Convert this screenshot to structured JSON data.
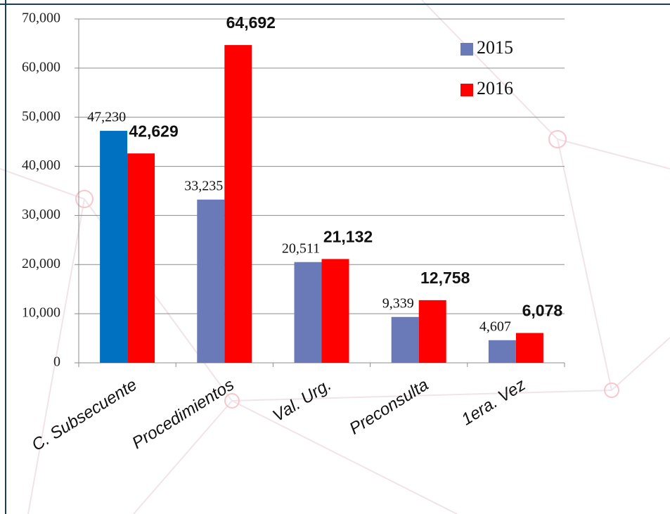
{
  "chart_data": {
    "type": "bar",
    "categories": [
      "C. Subsecuente",
      "Procedimientos",
      "Val. Urg.",
      "Preconsulta",
      "1era. Vez"
    ],
    "series": [
      {
        "name": "2015",
        "color": "#6a7ab8",
        "colors": [
          "#0070c0",
          "#6a7ab8",
          "#6a7ab8",
          "#6a7ab8",
          "#6a7ab8"
        ],
        "values": [
          47230,
          33235,
          20511,
          9339,
          4607
        ],
        "value_labels": [
          "47,230",
          "33,235",
          "20,511",
          "9,339",
          "4,607"
        ]
      },
      {
        "name": "2016",
        "color": "#ff0000",
        "values": [
          42629,
          64692,
          21132,
          12758,
          6078
        ],
        "value_labels": [
          "42,629",
          "64,692",
          "21,132",
          "12,758",
          "6,078"
        ]
      }
    ],
    "ylim": [
      0,
      70000
    ],
    "yticks": [
      {
        "value": 0,
        "label": "0"
      },
      {
        "value": 10000,
        "label": "10,000"
      },
      {
        "value": 20000,
        "label": "20,000"
      },
      {
        "value": 30000,
        "label": "30,000"
      },
      {
        "value": 40000,
        "label": "40,000"
      },
      {
        "value": 50000,
        "label": "50,000"
      },
      {
        "value": 60000,
        "label": "60,000"
      },
      {
        "value": 70000,
        "label": "70,000"
      }
    ],
    "grid": true,
    "legend": "top-right"
  }
}
